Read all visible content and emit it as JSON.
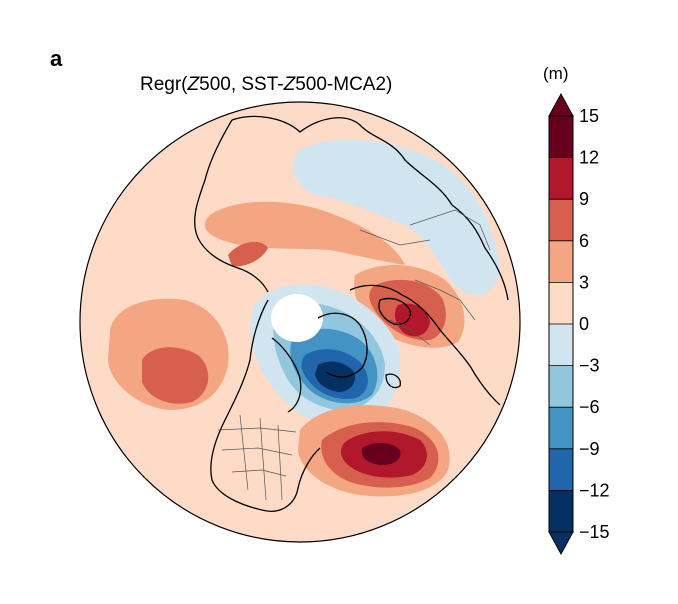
{
  "panel_label": "a",
  "title": {
    "prefix": "Regr(",
    "var1": "Z",
    "mid1": "500, SST-",
    "var2": "Z",
    "suffix": "500-MCA2)"
  },
  "colorbar": {
    "units": "(m)",
    "levels": [
      -15,
      -12,
      -9,
      -6,
      -3,
      0,
      3,
      6,
      9,
      12,
      15
    ],
    "tick_labels": [
      "15",
      "12",
      "9",
      "6",
      "3",
      "0",
      "−3",
      "−6",
      "−9",
      "−12",
      "−15"
    ],
    "colors_top_to_bottom": [
      "#67001f",
      "#b2182b",
      "#d6604d",
      "#f4a582",
      "#fddbc7",
      "#d1e5f0",
      "#92c5de",
      "#4393c3",
      "#2166ac",
      "#053061"
    ],
    "extend": "both",
    "extend_top_color": "#67001f",
    "extend_bottom_color": "#053061"
  },
  "map": {
    "projection": "north-polar-stereographic",
    "background_color": "#fddbc7",
    "missing_color": "#ffffff",
    "coastline_color": "#000000",
    "border_color": "#555555"
  }
}
